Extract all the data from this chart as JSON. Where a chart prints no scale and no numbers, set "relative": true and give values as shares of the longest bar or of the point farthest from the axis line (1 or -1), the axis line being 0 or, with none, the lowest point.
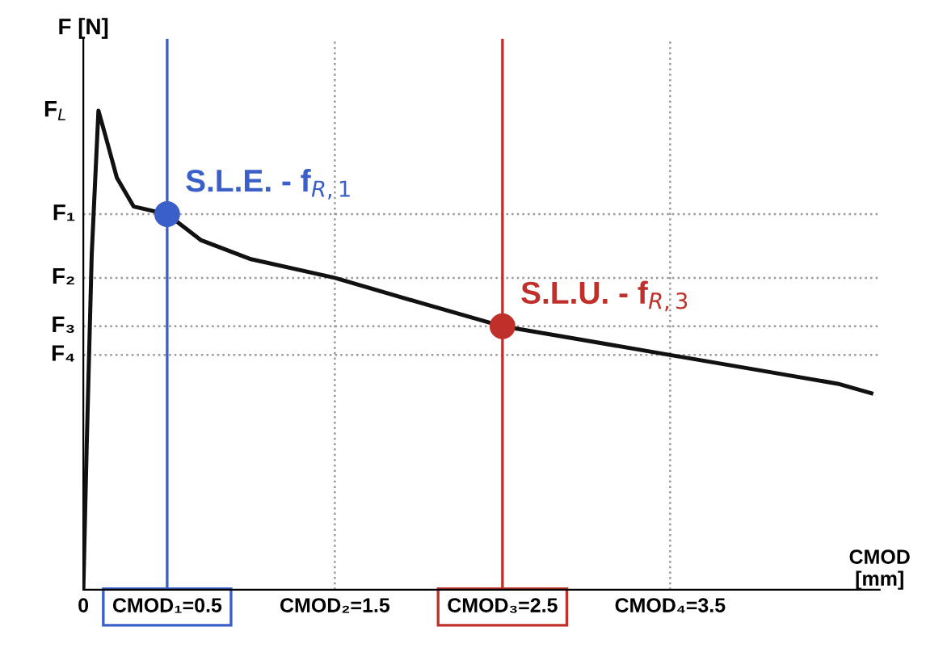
{
  "chart_data": {
    "type": "line",
    "relative": true,
    "xlabel": "CMOD\n[mm]",
    "ylabel": "F [N]",
    "xlim": [
      0,
      4.75
    ],
    "xticks": [
      0,
      {
        "value": 0.5,
        "label": "CMOD₁=0.5"
      },
      {
        "value": 1.5,
        "label": "CMOD₂=1.5"
      },
      {
        "value": 2.5,
        "label": "CMOD₃=2.5"
      },
      {
        "value": 3.5,
        "label": "CMOD₄=3.5"
      }
    ],
    "series": [
      {
        "type": "line",
        "color": "#111111",
        "x": [
          0,
          0.02,
          0.05,
          0.09,
          0.13,
          0.2,
          0.3,
          0.5,
          0.7,
          1.0,
          1.5,
          2.0,
          2.5,
          3.0,
          3.5,
          4.0,
          4.5,
          4.7
        ],
        "values": [
          0,
          0.3,
          0.7,
          1.0,
          0.95,
          0.86,
          0.8,
          0.784,
          0.73,
          0.69,
          0.651,
          0.6,
          0.55,
          0.52,
          0.49,
          0.46,
          0.43,
          0.41
        ]
      },
      {
        "type": "scatter",
        "name": "S.L.E. - f$_{R,1}$",
        "color": "#3a5fc8",
        "x": [
          0.5
        ],
        "values": [
          0.784
        ]
      },
      {
        "type": "scatter",
        "name": "S.L.U. - f$_{R,3}$",
        "color": "#c0302a",
        "x": [
          2.5
        ],
        "values": [
          0.55
        ]
      }
    ],
    "ref_lines": [
      {
        "axis": "y",
        "value": 0.784,
        "label": "F₁",
        "line_style": "dotted",
        "color": "#999999"
      },
      {
        "axis": "y",
        "value": 0.651,
        "label": "F₂",
        "line_style": "dotted",
        "color": "#999999"
      },
      {
        "axis": "y",
        "value": 0.55,
        "label": "F₃",
        "line_style": "dotted",
        "color": "#999999"
      },
      {
        "axis": "y",
        "value": 0.49,
        "label": "F₄",
        "line_style": "dotted",
        "color": "#999999"
      },
      {
        "axis": "x",
        "value": 0.5,
        "line_style": "solid",
        "color": "#3a5fc8"
      },
      {
        "axis": "x",
        "value": 1.5,
        "line_style": "dotted",
        "color": "#999999"
      },
      {
        "axis": "x",
        "value": 2.5,
        "line_style": "solid",
        "color": "#c0302a"
      },
      {
        "axis": "x",
        "value": 3.5,
        "line_style": "dotted",
        "color": "#999999"
      }
    ],
    "annotations": [
      {
        "text": "F$_{L}$",
        "x": 0.09,
        "y": 1.0
      }
    ],
    "grid": false
  }
}
